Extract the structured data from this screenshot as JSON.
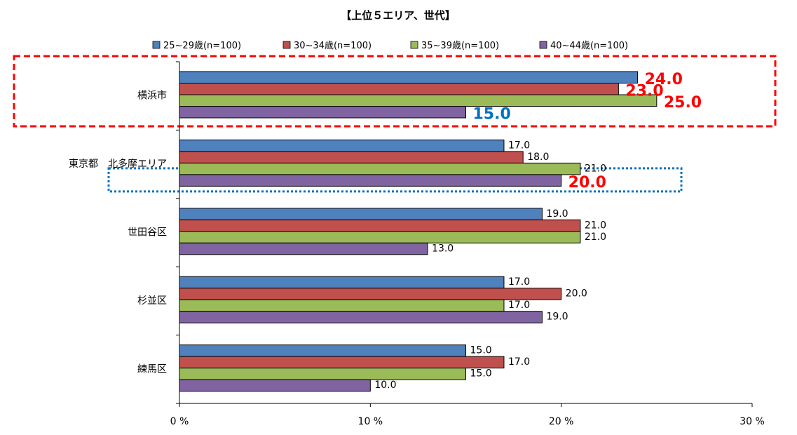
{
  "chart_data": {
    "type": "bar",
    "orientation": "horizontal",
    "title": "【上位５エリア、世代】",
    "categories": [
      "横浜市",
      "東京都　北多摩エリア",
      "世田谷区",
      "杉並区",
      "練馬区"
    ],
    "series": [
      {
        "name": "25~29歳(n=100)",
        "color": "#4f81bd",
        "values": [
          24.0,
          17.0,
          19.0,
          17.0,
          15.0
        ]
      },
      {
        "name": "30~34歳(n=100)",
        "color": "#c0504d",
        "values": [
          23.0,
          18.0,
          21.0,
          20.0,
          17.0
        ]
      },
      {
        "name": "35~39歳(n=100)",
        "color": "#9bbb59",
        "values": [
          25.0,
          21.0,
          21.0,
          17.0,
          15.0
        ]
      },
      {
        "name": "40~44歳(n=100)",
        "color": "#8064a2",
        "values": [
          15.0,
          20.0,
          13.0,
          19.0,
          10.0
        ]
      }
    ],
    "data_labels": [
      [
        "24.0",
        "17.0",
        "19.0",
        "17.0",
        "15.0"
      ],
      [
        "23.0",
        "18.0",
        "21.0",
        "20.0",
        "17.0"
      ],
      [
        "25.0",
        "21.0",
        "21.0",
        "17.0",
        "15.0"
      ],
      [
        "15.0",
        "20.0",
        "13.0",
        "19.0",
        "10.0"
      ]
    ],
    "x_ticks": [
      "0 %",
      "10 %",
      "20 %",
      "30 %"
    ],
    "xlim": [
      0,
      30
    ],
    "legend_position": "top",
    "grid": false,
    "highlights": [
      {
        "category_index": 0,
        "style": "red-dashed",
        "label_color": "#ff0000"
      },
      {
        "category_index": 1,
        "series_index": 3,
        "style": "blue-dotted",
        "label_color": "#ff0000"
      }
    ],
    "special_label_colors": {
      "0-3": "#0070c0"
    }
  }
}
